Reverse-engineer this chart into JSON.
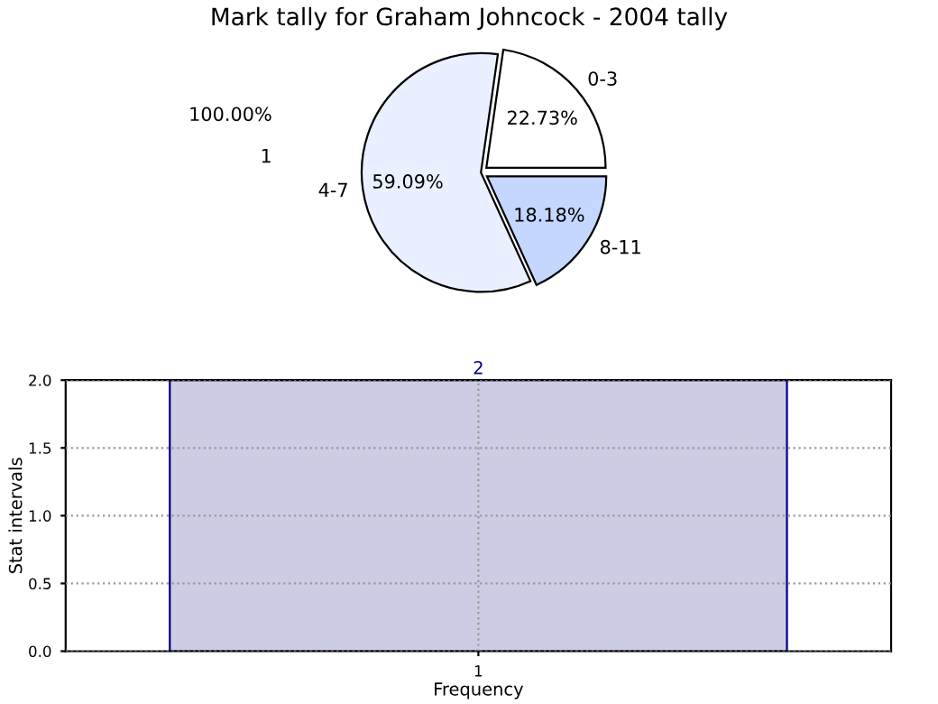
{
  "chart_data": [
    {
      "type": "pie",
      "title": "Mark tally for Graham Johncock - 2004 tally",
      "categories": [
        "0-3",
        "4-7",
        "8-11"
      ],
      "values": [
        22.73,
        59.09,
        18.18
      ],
      "colors": [
        "#ffffff",
        "#eaf0ff",
        "#c5d7ff"
      ],
      "value_labels": [
        "22.73%",
        "59.09%",
        "18.18%"
      ],
      "annotations": [
        "1",
        "100.00%"
      ]
    },
    {
      "type": "bar",
      "categories": [
        "1"
      ],
      "values": [
        2
      ],
      "color": "#cccce4",
      "xlabel": "Frequency",
      "ylabel": "Stat intervals",
      "ylim": [
        0,
        2
      ],
      "yticks": [
        {
          "value": 0,
          "label": "0.0"
        },
        {
          "value": 0.5,
          "label": "0.5"
        },
        {
          "value": 1,
          "label": "1.0"
        },
        {
          "value": 1.5,
          "label": "1.5"
        },
        {
          "value": 2,
          "label": "2.0"
        }
      ],
      "grid": true,
      "data_labels": true
    }
  ]
}
